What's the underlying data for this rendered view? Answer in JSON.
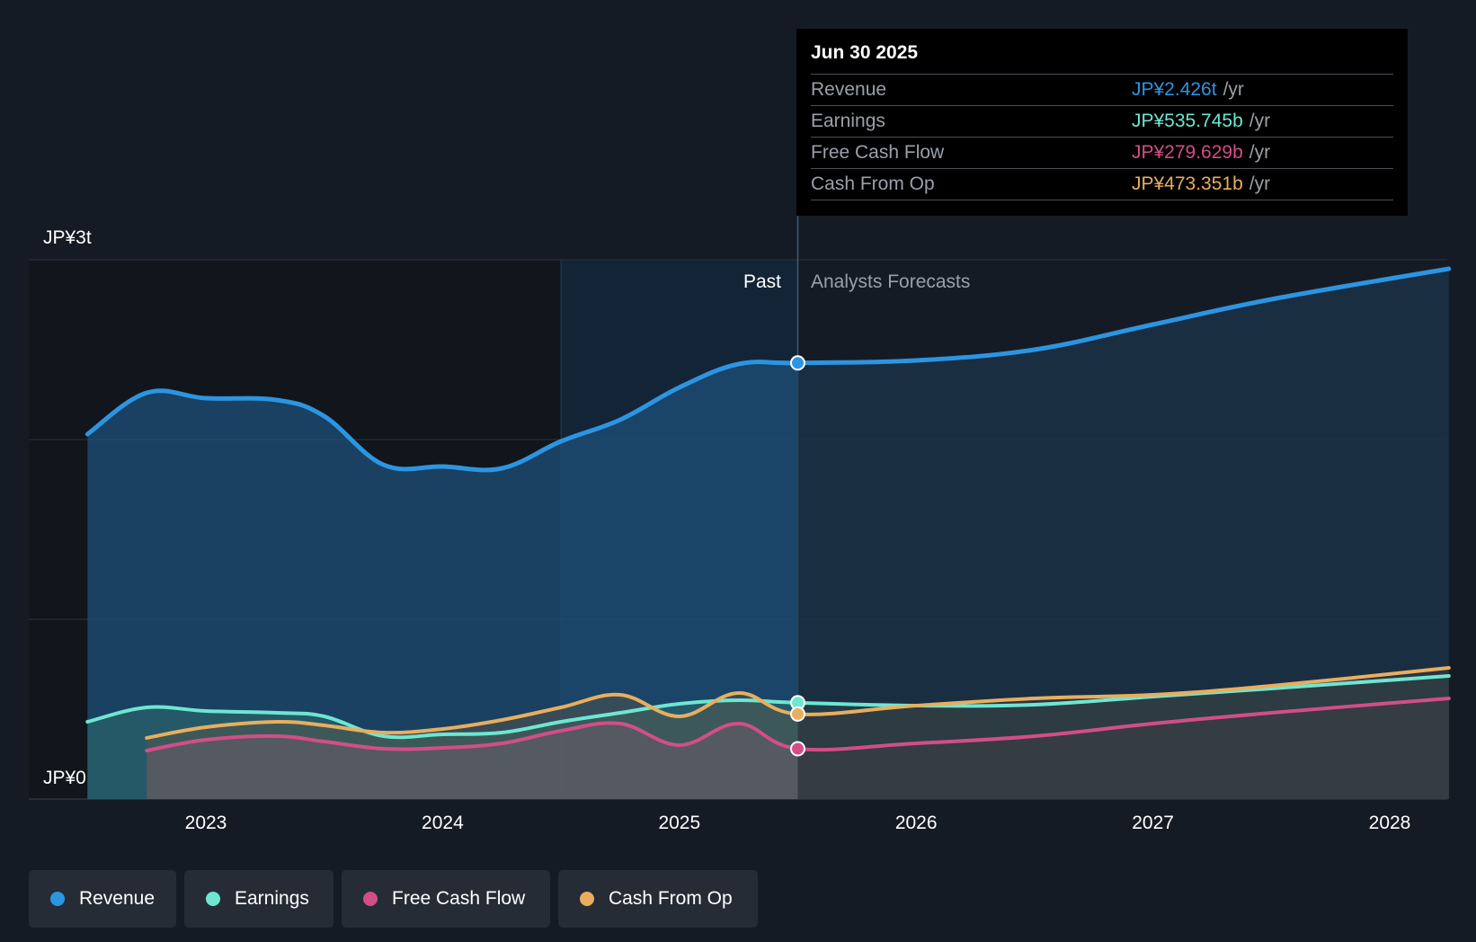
{
  "chart_data": {
    "type": "area",
    "y_axis": {
      "top_label": "JP¥3t",
      "bottom_label": "JP¥0",
      "ylim": [
        0,
        3000
      ],
      "unit": "JP¥b"
    },
    "x_axis": {
      "ticks": [
        "2023",
        "2024",
        "2025",
        "2026",
        "2027",
        "2028"
      ],
      "tick_values": [
        2023.0,
        2024.0,
        2025.0,
        2026.0,
        2027.0,
        2028.0
      ],
      "xlim": [
        2021.75,
        2028.25
      ]
    },
    "past_label": "Past",
    "forecast_label": "Analysts Forecasts",
    "divider_x": 2025.5,
    "highlight_start_x": 2024.5,
    "past_start_x": 2022.5,
    "grid": true,
    "legend_position": "bottom-left",
    "series": [
      {
        "name": "Revenue",
        "key": "revenue",
        "color": "#2c95e2",
        "points": [
          [
            2022.5,
            2030
          ],
          [
            2022.75,
            2260
          ],
          [
            2023.0,
            2230
          ],
          [
            2023.3,
            2220
          ],
          [
            2023.5,
            2130
          ],
          [
            2023.75,
            1860
          ],
          [
            2024.0,
            1850
          ],
          [
            2024.25,
            1840
          ],
          [
            2024.5,
            1990
          ],
          [
            2024.75,
            2110
          ],
          [
            2025.0,
            2290
          ],
          [
            2025.25,
            2420
          ],
          [
            2025.5,
            2426
          ],
          [
            2026.0,
            2440
          ],
          [
            2026.5,
            2500
          ],
          [
            2027.0,
            2640
          ],
          [
            2027.5,
            2780
          ],
          [
            2028.25,
            2950
          ]
        ]
      },
      {
        "name": "Earnings",
        "key": "earnings",
        "color": "#6ee6d2",
        "points": [
          [
            2022.5,
            430
          ],
          [
            2022.75,
            510
          ],
          [
            2023.0,
            490
          ],
          [
            2023.3,
            480
          ],
          [
            2023.5,
            460
          ],
          [
            2023.75,
            350
          ],
          [
            2024.0,
            360
          ],
          [
            2024.25,
            370
          ],
          [
            2024.5,
            430
          ],
          [
            2024.75,
            480
          ],
          [
            2025.0,
            530
          ],
          [
            2025.25,
            550
          ],
          [
            2025.5,
            536
          ],
          [
            2026.0,
            520
          ],
          [
            2026.5,
            525
          ],
          [
            2027.0,
            570
          ],
          [
            2027.5,
            615
          ],
          [
            2028.25,
            685
          ]
        ]
      },
      {
        "name": "Free Cash Flow",
        "key": "fcf",
        "color": "#d24e88",
        "points": [
          [
            2022.75,
            270
          ],
          [
            2023.0,
            330
          ],
          [
            2023.3,
            350
          ],
          [
            2023.5,
            320
          ],
          [
            2023.75,
            280
          ],
          [
            2024.0,
            285
          ],
          [
            2024.25,
            310
          ],
          [
            2024.5,
            380
          ],
          [
            2024.75,
            420
          ],
          [
            2025.0,
            300
          ],
          [
            2025.25,
            420
          ],
          [
            2025.5,
            280
          ],
          [
            2026.0,
            310
          ],
          [
            2026.5,
            350
          ],
          [
            2027.0,
            420
          ],
          [
            2027.5,
            480
          ],
          [
            2028.25,
            560
          ]
        ]
      },
      {
        "name": "Cash From Op",
        "key": "cfo",
        "color": "#e8ae5e",
        "points": [
          [
            2022.75,
            340
          ],
          [
            2023.0,
            400
          ],
          [
            2023.3,
            430
          ],
          [
            2023.5,
            410
          ],
          [
            2023.75,
            370
          ],
          [
            2024.0,
            390
          ],
          [
            2024.25,
            440
          ],
          [
            2024.5,
            510
          ],
          [
            2024.75,
            580
          ],
          [
            2025.0,
            460
          ],
          [
            2025.25,
            590
          ],
          [
            2025.5,
            473
          ],
          [
            2026.0,
            520
          ],
          [
            2026.5,
            560
          ],
          [
            2027.0,
            580
          ],
          [
            2027.5,
            630
          ],
          [
            2028.25,
            730
          ]
        ]
      }
    ]
  },
  "tooltip": {
    "date": "Jun 30 2025",
    "unit": "/yr",
    "rows": [
      {
        "label": "Revenue",
        "value": "JP¥2.426t",
        "color": "#2c95e2"
      },
      {
        "label": "Earnings",
        "value": "JP¥535.745b",
        "color": "#6ee6d2"
      },
      {
        "label": "Free Cash Flow",
        "value": "JP¥279.629b",
        "color": "#d24e88"
      },
      {
        "label": "Cash From Op",
        "value": "JP¥473.351b",
        "color": "#e8ae5e"
      }
    ]
  },
  "legend": [
    {
      "label": "Revenue",
      "color": "#2c95e2"
    },
    {
      "label": "Earnings",
      "color": "#6ee6d2"
    },
    {
      "label": "Free Cash Flow",
      "color": "#d24e88"
    },
    {
      "label": "Cash From Op",
      "color": "#e8ae5e"
    }
  ]
}
